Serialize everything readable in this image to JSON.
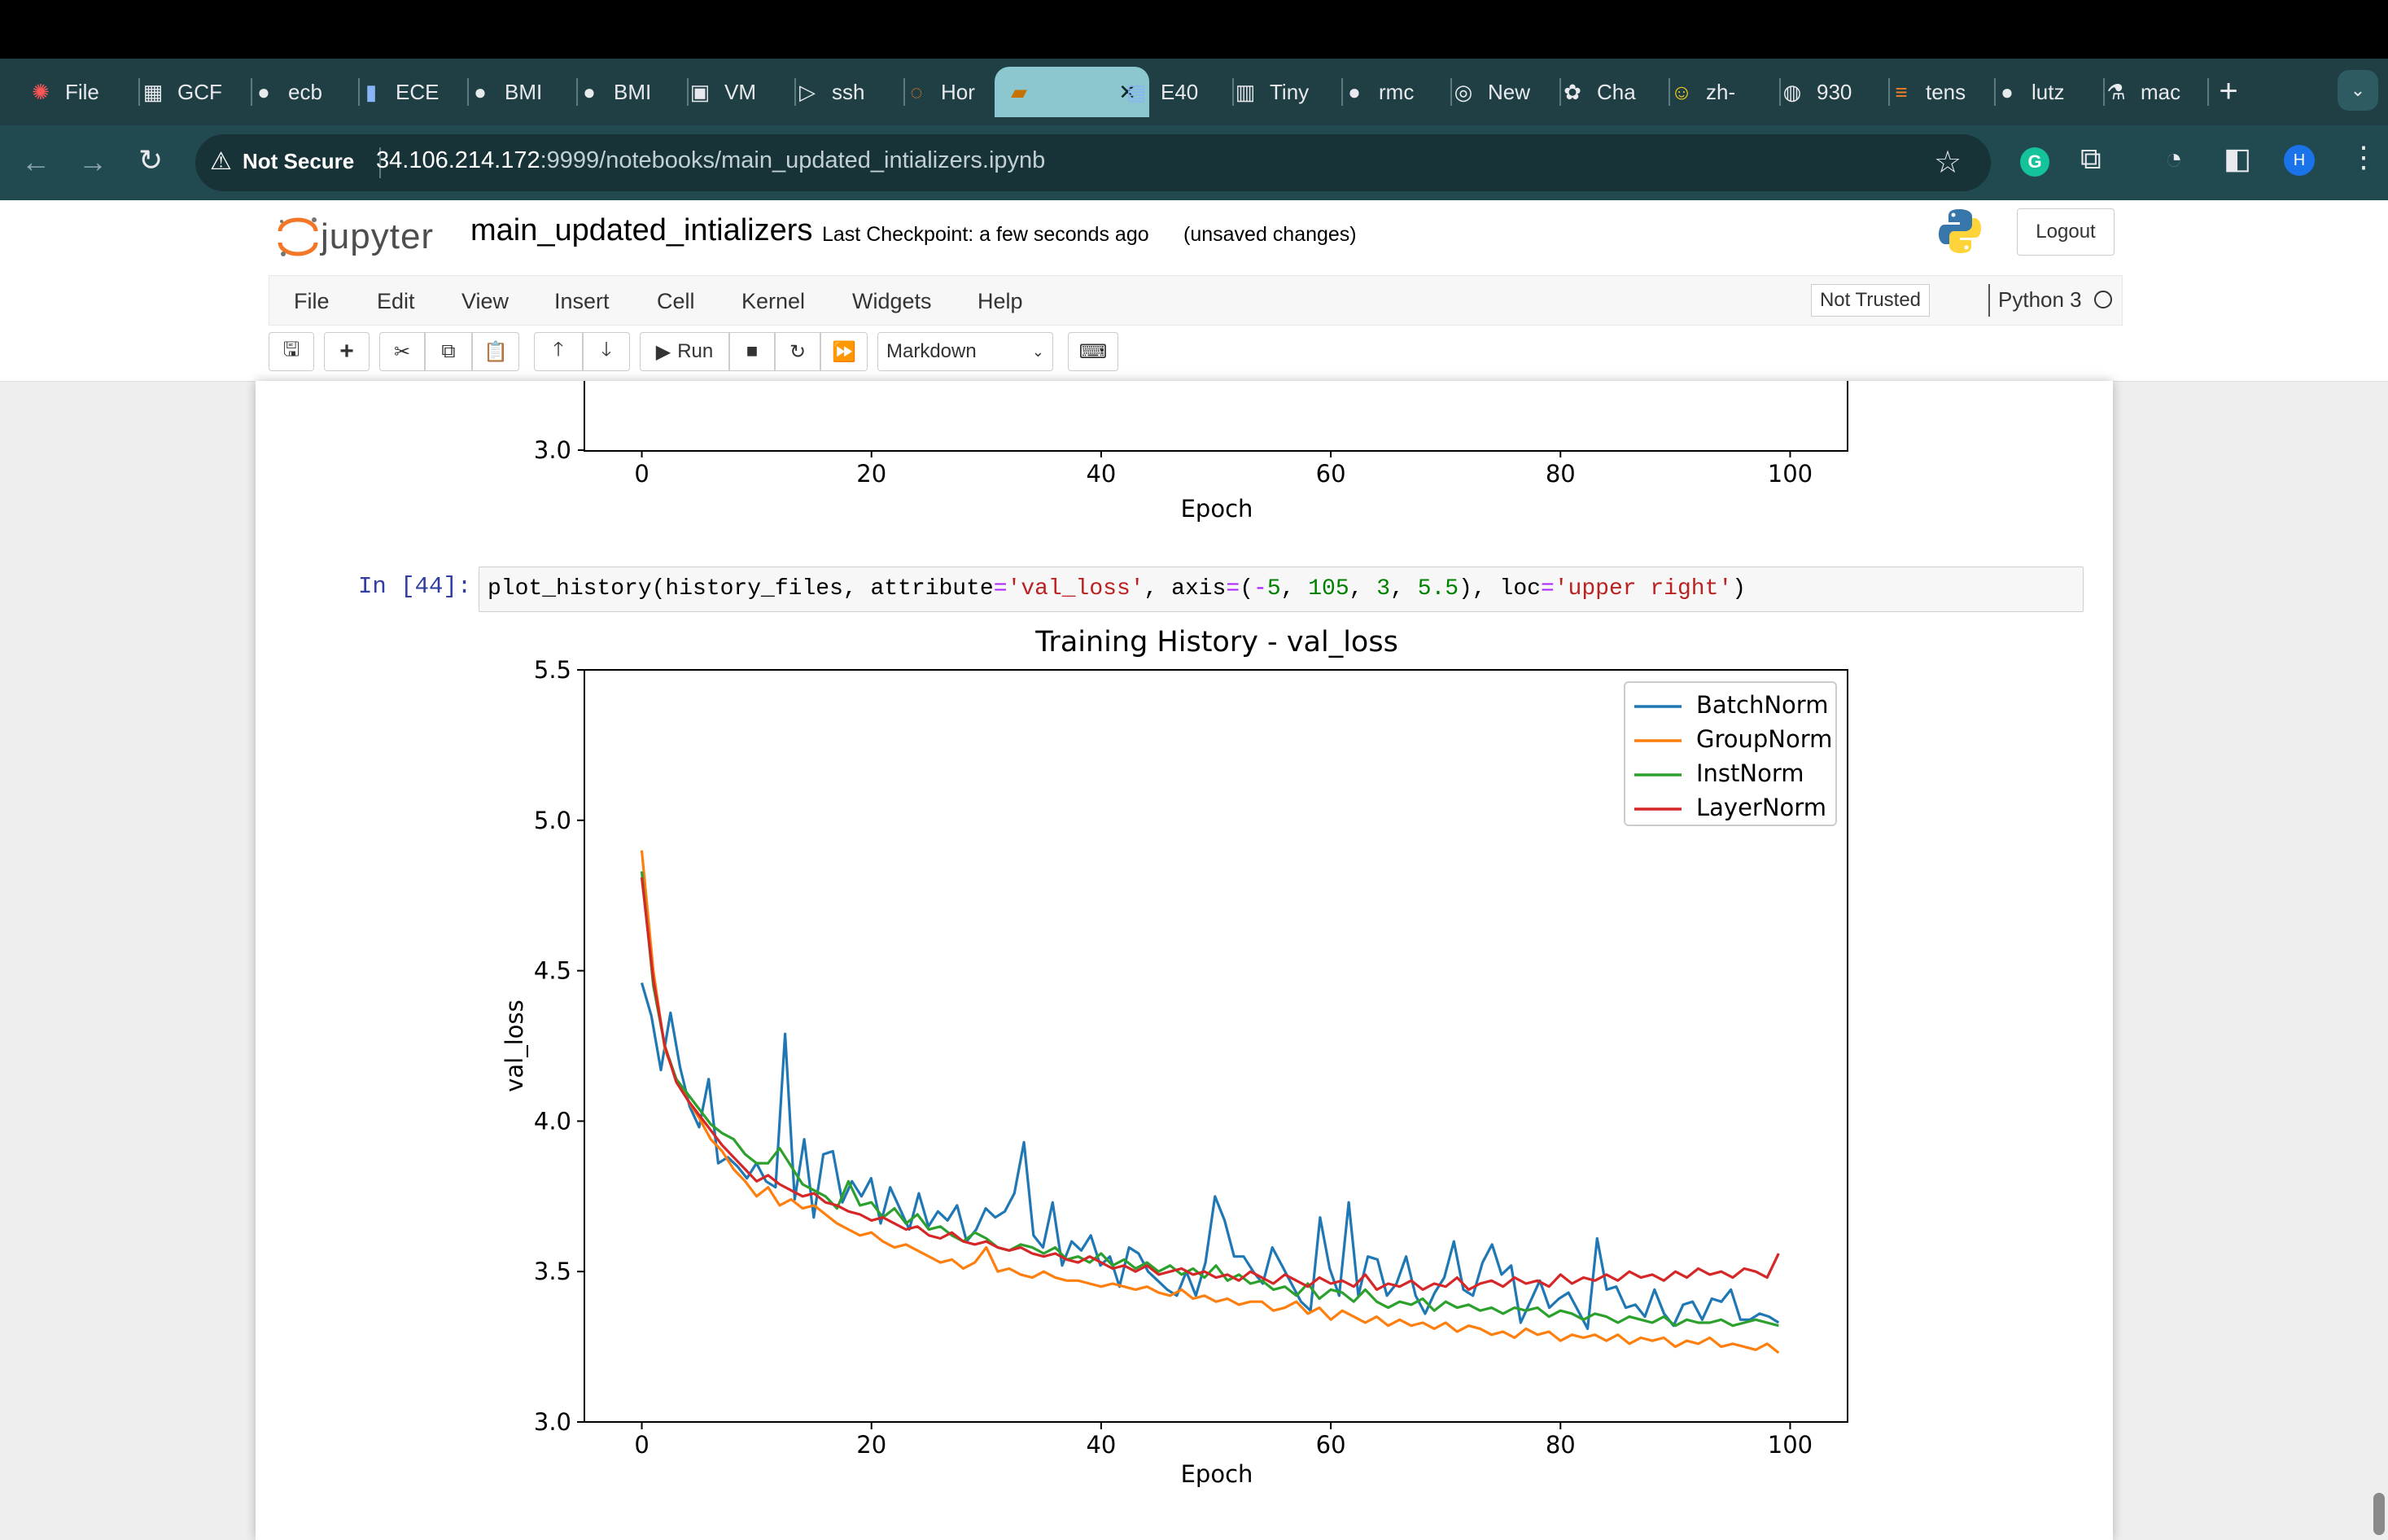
{
  "browser": {
    "tabs": [
      {
        "icon": "red-gear-icon",
        "label": "File"
      },
      {
        "icon": "gcp-icon",
        "label": "GCF"
      },
      {
        "icon": "github-icon",
        "label": "ecb"
      },
      {
        "icon": "bar-chart-icon",
        "label": "ECE"
      },
      {
        "icon": "github-icon",
        "label": "BMI"
      },
      {
        "icon": "github-icon",
        "label": "BMI"
      },
      {
        "icon": "chip-icon",
        "label": "VM"
      },
      {
        "icon": "terminal-icon",
        "label": "ssh"
      },
      {
        "icon": "jupyter-icon",
        "label": "Hor"
      },
      {
        "icon": "book-icon",
        "label": ""
      },
      {
        "icon": "docs-icon",
        "label": "E40"
      },
      {
        "icon": "tinyurl-icon",
        "label": "Tiny"
      },
      {
        "icon": "github-icon",
        "label": "rmc"
      },
      {
        "icon": "chrome-icon",
        "label": "New"
      },
      {
        "icon": "chatgpt-icon",
        "label": "Cha"
      },
      {
        "icon": "huggingface-icon",
        "label": "zh-"
      },
      {
        "icon": "globe-icon",
        "label": "930"
      },
      {
        "icon": "stackoverflow-icon",
        "label": "tens"
      },
      {
        "icon": "github-icon",
        "label": "lutz"
      },
      {
        "icon": "flask-icon",
        "label": "mac"
      }
    ],
    "security_label": "Not Secure",
    "url_host": "34.106.214.172",
    "url_rest": ":9999/notebooks/main_updated_intializers.ipynb",
    "profile_initial": "H",
    "extension_initial": "G"
  },
  "jupyter": {
    "logo_text": "jupyter",
    "notebook_name": "main_updated_intializers",
    "checkpoint": "Last Checkpoint: a few seconds ago",
    "unsaved": "(unsaved changes)",
    "logout": "Logout",
    "menus": [
      "File",
      "Edit",
      "View",
      "Insert",
      "Cell",
      "Kernel",
      "Widgets",
      "Help"
    ],
    "trust": "Not Trusted",
    "kernel": "Python 3",
    "run_label": "Run",
    "cell_type": "Markdown"
  },
  "cell": {
    "prompt": "In [44]:",
    "code": {
      "fn": "plot_history(history_files, attribute",
      "eq1": "=",
      "s1": "'val_loss'",
      "p2": ", axis",
      "eq2": "=",
      "p3": "(",
      "minus": "-",
      "n1": "5",
      "c1": ", ",
      "n2": "105",
      "c2": ", ",
      "n3": "3",
      "c3": ", ",
      "n4": "5.5",
      "p4": "), loc",
      "eq3": "=",
      "s2": "'upper right'",
      "p5": ")"
    }
  },
  "prev_chart": {
    "xticks": [
      "0",
      "20",
      "40",
      "60",
      "80",
      "100"
    ],
    "ytick": "3.0",
    "xlabel": "Epoch"
  },
  "chart_data": {
    "type": "line",
    "title": "Training History - val_loss",
    "xlabel": "Epoch",
    "ylabel": "val_loss",
    "xlim": [
      -5,
      105
    ],
    "ylim": [
      3.0,
      5.5
    ],
    "xticks": [
      0,
      20,
      40,
      60,
      80,
      100
    ],
    "yticks": [
      3.0,
      3.5,
      4.0,
      4.5,
      5.0,
      5.5
    ],
    "legend_loc": "upper right",
    "grid": false,
    "series": [
      {
        "name": "BatchNorm",
        "color": "#1f77b4",
        "values": [
          4.46,
          4.35,
          4.17,
          4.36,
          4.18,
          4.05,
          3.98,
          4.14,
          3.86,
          3.88,
          3.85,
          3.81,
          3.86,
          3.8,
          3.78,
          4.29,
          3.74,
          3.94,
          3.68,
          3.89,
          3.9,
          3.73,
          3.8,
          3.75,
          3.81,
          3.66,
          3.78,
          3.71,
          3.64,
          3.76,
          3.65,
          3.7,
          3.67,
          3.72,
          3.6,
          3.64,
          3.71,
          3.68,
          3.7,
          3.76,
          3.93,
          3.62,
          3.58,
          3.73,
          3.52,
          3.6,
          3.57,
          3.62,
          3.52,
          3.55,
          3.45,
          3.58,
          3.56,
          3.5,
          3.47,
          3.44,
          3.42,
          3.5,
          3.42,
          3.53,
          3.75,
          3.67,
          3.55,
          3.55,
          3.5,
          3.46,
          3.58,
          3.52,
          3.46,
          3.4,
          3.37,
          3.68,
          3.51,
          3.42,
          3.73,
          3.42,
          3.55,
          3.54,
          3.42,
          3.46,
          3.55,
          3.42,
          3.36,
          3.43,
          3.48,
          3.6,
          3.44,
          3.42,
          3.53,
          3.59,
          3.49,
          3.52,
          3.33,
          3.4,
          3.47,
          3.38,
          3.41,
          3.43,
          3.37,
          3.31,
          3.61,
          3.44,
          3.45,
          3.38,
          3.39,
          3.35,
          3.44,
          3.36,
          3.32,
          3.39,
          3.4,
          3.34,
          3.41,
          3.4,
          3.44,
          3.34,
          3.34,
          3.36,
          3.35,
          3.33
        ]
      },
      {
        "name": "GroupNorm",
        "color": "#ff7f0e",
        "values": [
          4.9,
          4.5,
          4.24,
          4.14,
          4.07,
          4.01,
          3.94,
          3.9,
          3.84,
          3.8,
          3.75,
          3.78,
          3.72,
          3.74,
          3.71,
          3.72,
          3.69,
          3.66,
          3.64,
          3.62,
          3.63,
          3.6,
          3.58,
          3.59,
          3.57,
          3.55,
          3.53,
          3.54,
          3.51,
          3.53,
          3.58,
          3.5,
          3.51,
          3.49,
          3.48,
          3.5,
          3.48,
          3.47,
          3.47,
          3.46,
          3.45,
          3.46,
          3.45,
          3.44,
          3.45,
          3.43,
          3.42,
          3.44,
          3.41,
          3.42,
          3.4,
          3.41,
          3.39,
          3.4,
          3.4,
          3.37,
          3.38,
          3.4,
          3.36,
          3.38,
          3.34,
          3.37,
          3.35,
          3.33,
          3.35,
          3.32,
          3.34,
          3.32,
          3.33,
          3.31,
          3.33,
          3.3,
          3.32,
          3.31,
          3.29,
          3.3,
          3.28,
          3.31,
          3.29,
          3.3,
          3.27,
          3.29,
          3.28,
          3.29,
          3.27,
          3.29,
          3.26,
          3.28,
          3.27,
          3.28,
          3.25,
          3.27,
          3.26,
          3.28,
          3.25,
          3.26,
          3.25,
          3.24,
          3.26,
          3.23
        ]
      },
      {
        "name": "InstNorm",
        "color": "#2ca02c",
        "values": [
          4.83,
          4.45,
          4.25,
          4.14,
          4.09,
          4.04,
          3.99,
          3.96,
          3.94,
          3.89,
          3.86,
          3.86,
          3.91,
          3.85,
          3.79,
          3.77,
          3.75,
          3.71,
          3.8,
          3.72,
          3.73,
          3.68,
          3.71,
          3.66,
          3.69,
          3.64,
          3.65,
          3.62,
          3.6,
          3.63,
          3.61,
          3.58,
          3.57,
          3.59,
          3.58,
          3.56,
          3.58,
          3.54,
          3.55,
          3.53,
          3.56,
          3.52,
          3.54,
          3.51,
          3.53,
          3.5,
          3.52,
          3.49,
          3.51,
          3.48,
          3.52,
          3.47,
          3.49,
          3.46,
          3.47,
          3.44,
          3.45,
          3.42,
          3.46,
          3.41,
          3.44,
          3.43,
          3.4,
          3.44,
          3.4,
          3.38,
          3.4,
          3.39,
          3.41,
          3.37,
          3.4,
          3.38,
          3.39,
          3.37,
          3.38,
          3.36,
          3.38,
          3.37,
          3.38,
          3.35,
          3.37,
          3.36,
          3.34,
          3.36,
          3.35,
          3.33,
          3.35,
          3.34,
          3.33,
          3.35,
          3.32,
          3.34,
          3.33,
          3.33,
          3.34,
          3.32,
          3.33,
          3.34,
          3.33,
          3.32
        ]
      },
      {
        "name": "LayerNorm",
        "color": "#d62728",
        "values": [
          4.81,
          4.47,
          4.25,
          4.13,
          4.07,
          4.02,
          3.97,
          3.92,
          3.88,
          3.84,
          3.8,
          3.82,
          3.79,
          3.77,
          3.75,
          3.76,
          3.73,
          3.72,
          3.7,
          3.69,
          3.67,
          3.68,
          3.66,
          3.64,
          3.65,
          3.62,
          3.61,
          3.63,
          3.6,
          3.59,
          3.6,
          3.58,
          3.57,
          3.58,
          3.56,
          3.55,
          3.56,
          3.54,
          3.53,
          3.55,
          3.53,
          3.51,
          3.52,
          3.5,
          3.52,
          3.49,
          3.5,
          3.51,
          3.49,
          3.5,
          3.48,
          3.49,
          3.47,
          3.5,
          3.48,
          3.46,
          3.49,
          3.47,
          3.45,
          3.48,
          3.46,
          3.47,
          3.45,
          3.49,
          3.44,
          3.46,
          3.45,
          3.47,
          3.44,
          3.46,
          3.45,
          3.48,
          3.44,
          3.46,
          3.47,
          3.45,
          3.48,
          3.46,
          3.47,
          3.45,
          3.49,
          3.46,
          3.48,
          3.47,
          3.49,
          3.47,
          3.5,
          3.48,
          3.49,
          3.47,
          3.5,
          3.48,
          3.51,
          3.49,
          3.5,
          3.48,
          3.51,
          3.5,
          3.48,
          3.56
        ]
      }
    ]
  }
}
